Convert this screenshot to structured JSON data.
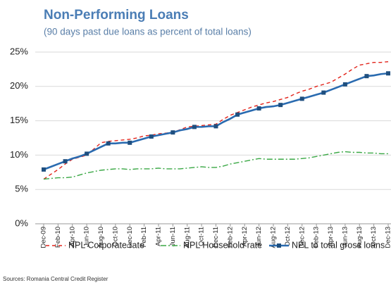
{
  "chart_data": {
    "type": "line",
    "title": "Non-Performing Loans",
    "subtitle": "(90 days past due loans as percent of total loans)",
    "source": "Sources: Romania Central Credit Register",
    "categories": [
      "Dec-09",
      null,
      "Feb-10",
      null,
      "Apr-10",
      null,
      "Jun-10",
      null,
      "Aug-10",
      null,
      "Oct-10",
      null,
      "Dec-10",
      null,
      "Feb-11",
      null,
      "Apr-11",
      null,
      "Jun-11",
      null,
      "Aug-11",
      null,
      "Oct-11",
      null,
      "Dec-11",
      null,
      "Feb-12",
      null,
      "Apr-12",
      null,
      "Jun-12",
      null,
      "Aug-12",
      null,
      "Oct-12",
      null,
      "Dec-12",
      null,
      "Feb-13",
      null,
      "Apr-13",
      null,
      "Jun-13",
      null,
      "Aug-13",
      null,
      "Oct-13",
      null,
      "Dec-13"
    ],
    "series": [
      {
        "name": "NPL Corporate rate",
        "color": "#e2231a",
        "dash": "5,4",
        "values": [
          6.5,
          7.2,
          7.9,
          8.7,
          9.4,
          9.7,
          10.0,
          10.9,
          11.8,
          12.0,
          12.1,
          12.2,
          12.3,
          12.5,
          12.8,
          12.9,
          13.1,
          13.2,
          13.3,
          13.7,
          14.1,
          14.2,
          14.3,
          14.4,
          14.5,
          15.2,
          15.8,
          16.2,
          16.6,
          17.0,
          17.3,
          17.6,
          17.8,
          18.1,
          18.4,
          18.9,
          19.3,
          19.6,
          20.0,
          20.3,
          20.6,
          21.2,
          21.8,
          22.5,
          23.1,
          23.3,
          23.5,
          23.5,
          23.6
        ]
      },
      {
        "name": "NPL Household rate",
        "color": "#3aa845",
        "dash": "8,3,2,3",
        "values": [
          6.5,
          6.6,
          6.7,
          6.7,
          6.8,
          7.1,
          7.4,
          7.6,
          7.8,
          7.9,
          8.0,
          8.0,
          7.9,
          8.0,
          8.0,
          8.0,
          8.1,
          8.0,
          8.0,
          8.0,
          8.1,
          8.2,
          8.3,
          8.2,
          8.2,
          8.4,
          8.7,
          8.9,
          9.1,
          9.3,
          9.5,
          9.4,
          9.4,
          9.4,
          9.4,
          9.4,
          9.5,
          9.6,
          9.8,
          10.0,
          10.2,
          10.4,
          10.5,
          10.4,
          10.4,
          10.3,
          10.3,
          10.2,
          10.2
        ]
      },
      {
        "name": "NPL to total gross loans",
        "color": "#2a6bb0",
        "marker_color": "#1f4f7f",
        "marker_every": 3,
        "values": [
          7.9,
          8.3,
          8.7,
          9.1,
          9.5,
          9.8,
          10.2,
          10.7,
          11.2,
          11.7,
          11.7,
          11.8,
          11.8,
          12.1,
          12.4,
          12.7,
          12.9,
          13.1,
          13.3,
          13.6,
          13.8,
          14.1,
          14.1,
          14.2,
          14.2,
          14.8,
          15.3,
          15.9,
          16.2,
          16.5,
          16.8,
          17.0,
          17.1,
          17.3,
          17.6,
          17.9,
          18.2,
          18.5,
          18.8,
          19.1,
          19.5,
          19.9,
          20.3,
          20.7,
          21.1,
          21.5,
          21.6,
          21.8,
          21.9
        ]
      }
    ],
    "ylim": [
      0,
      25
    ],
    "yticks": [
      {
        "value": 0,
        "label": "0%"
      },
      {
        "value": 5,
        "label": "5%"
      },
      {
        "value": 10,
        "label": "10%"
      },
      {
        "value": 15,
        "label": "15%"
      },
      {
        "value": 20,
        "label": "20%"
      },
      {
        "value": 25,
        "label": "25%"
      }
    ],
    "grid": true,
    "legend": "bottom"
  }
}
